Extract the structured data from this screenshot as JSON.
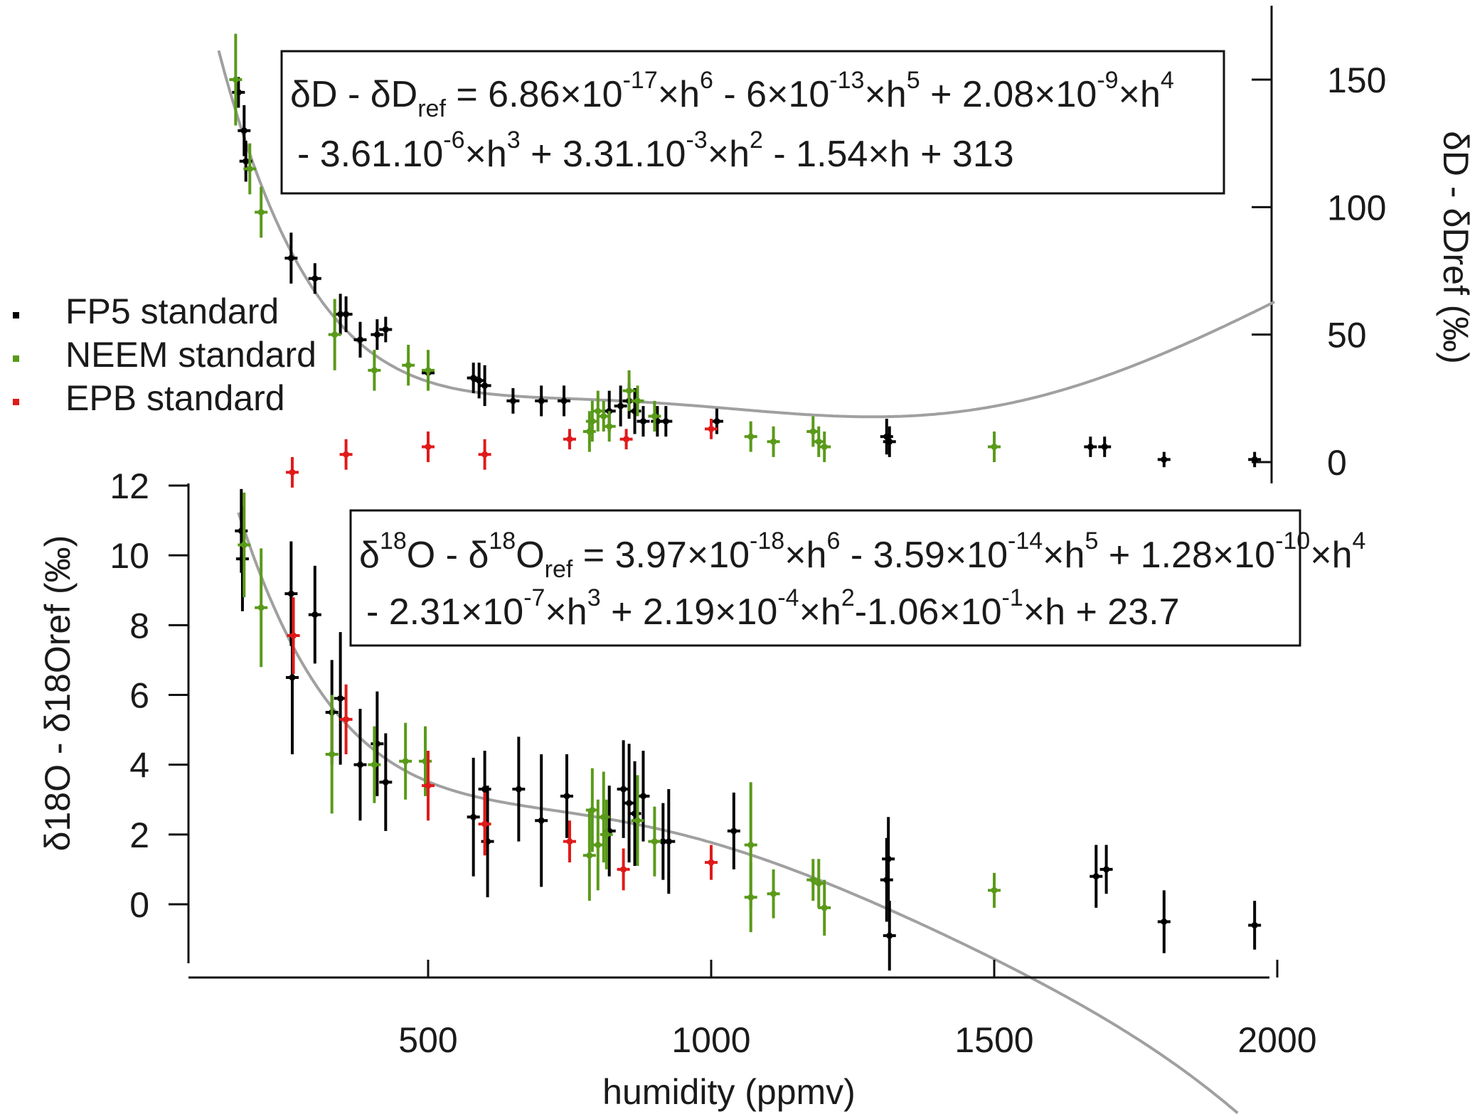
{
  "chart_data": {
    "type": "scatter",
    "x_axis": {
      "label": "humidity (ppmv)",
      "xlim": [
        70,
        2000
      ],
      "ticks": [
        "500",
        "1000",
        "1500",
        "2000"
      ]
    },
    "legend": {
      "placement": "left",
      "items": [
        {
          "label": "FP5 standard",
          "color": "#000000"
        },
        {
          "label": "NEEM standard",
          "color": "#5a9a1a"
        },
        {
          "label": "EPB standard",
          "color": "#e01a1a"
        }
      ]
    },
    "fit_color": "#a0a0a0",
    "panels": [
      {
        "id": "dD",
        "ylabel": "δD - δDref (‰)",
        "ylim": [
          0,
          180
        ],
        "yticks": [
          "0",
          "50",
          "100",
          "150"
        ],
        "equation": {
          "line1": [
            "δD - δD",
            "ref",
            " = 6.86×10",
            "-17",
            "×h",
            "6",
            " - 6×10",
            "-13",
            "×h",
            "5",
            " + 2.08×10",
            "-9",
            "×h",
            "4"
          ],
          "line2": [
            " - 3.61.10",
            "-6",
            "×h",
            "3",
            " + 3.31.10",
            "-3",
            "×h",
            "2",
            " - 1.54×h + 313"
          ]
        },
        "fit_coeffs": [
          313,
          -1.54,
          0.00331,
          -3.61e-06,
          2.08e-09,
          -6e-13,
          6.86e-17
        ],
        "series": [
          {
            "name": "FP5 standard",
            "points": [
              [
                165,
                145,
                6
              ],
              [
                175,
                130,
                10
              ],
              [
                178,
                118,
                8
              ],
              [
                258,
                80,
                10
              ],
              [
                300,
                72,
                6
              ],
              [
                345,
                58,
                8
              ],
              [
                355,
                58,
                7
              ],
              [
                380,
                48,
                7
              ],
              [
                410,
                50,
                6
              ],
              [
                425,
                52,
                5
              ],
              [
                500,
                35,
                5
              ],
              [
                580,
                33,
                6
              ],
              [
                590,
                32,
                7
              ],
              [
                600,
                30,
                8
              ],
              [
                650,
                24,
                5
              ],
              [
                700,
                24,
                6
              ],
              [
                740,
                24,
                6
              ],
              [
                820,
                20,
                8
              ],
              [
                840,
                22,
                8
              ],
              [
                855,
                24,
                7
              ],
              [
                865,
                20,
                9
              ],
              [
                880,
                16,
                6
              ],
              [
                905,
                16,
                6
              ],
              [
                920,
                16,
                6
              ],
              [
                1010,
                16,
                5
              ],
              [
                1310,
                10,
                7
              ],
              [
                1315,
                8,
                6
              ],
              [
                1670,
                6,
                4
              ],
              [
                1695,
                6,
                4
              ],
              [
                1800,
                1,
                3
              ],
              [
                1960,
                1,
                3
              ]
            ]
          },
          {
            "name": "NEEM standard",
            "points": [
              [
                160,
                150,
                18
              ],
              [
                185,
                115,
                10
              ],
              [
                205,
                98,
                10
              ],
              [
                335,
                50,
                14
              ],
              [
                405,
                36,
                8
              ],
              [
                465,
                38,
                8
              ],
              [
                500,
                36,
                8
              ],
              [
                785,
                12,
                8
              ],
              [
                790,
                16,
                8
              ],
              [
                800,
                20,
                8
              ],
              [
                810,
                18,
                6
              ],
              [
                820,
                14,
                6
              ],
              [
                855,
                28,
                8
              ],
              [
                870,
                24,
                6
              ],
              [
                900,
                18,
                6
              ],
              [
                1070,
                10,
                6
              ],
              [
                1110,
                8,
                6
              ],
              [
                1180,
                12,
                6
              ],
              [
                1190,
                8,
                6
              ],
              [
                1200,
                6,
                6
              ],
              [
                1500,
                6,
                6
              ]
            ]
          },
          {
            "name": "EPB standard",
            "points": [
              [
                260,
                -4,
                6
              ],
              [
                355,
                3,
                6
              ],
              [
                500,
                6,
                6
              ],
              [
                600,
                3,
                6
              ],
              [
                750,
                9,
                4
              ],
              [
                850,
                9,
                4
              ],
              [
                1000,
                13,
                4
              ]
            ]
          }
        ]
      },
      {
        "id": "d18O",
        "ylabel": "δ18O - δ18Oref (‰)",
        "ylim": [
          -2,
          12
        ],
        "yticks": [
          "0",
          "2",
          "4",
          "6",
          "8",
          "10",
          "12"
        ],
        "equation": {
          "line1": [
            "δ",
            "18",
            "O - δ",
            "18",
            "O",
            "ref",
            " = 3.97×10",
            "-18",
            "×h",
            "6",
            " - 3.59×10",
            "-14",
            "×h",
            "5",
            " + 1.28×10",
            "-10",
            "×h",
            "4"
          ],
          "line2": [
            " - 2.31×10",
            "-7",
            "×h",
            "3",
            " + 2.19×10",
            "-4",
            "×h",
            "2",
            "-1.06×10",
            "-1",
            "×h + 23.7"
          ]
        },
        "fit_coeffs": [
          23.7,
          -0.106,
          0.000219,
          -2.31e-07,
          1.28e-10,
          -3.59e-14,
          3.97e-18
        ],
        "series": [
          {
            "name": "FP5 standard",
            "points": [
              [
                170,
                10.7,
                1.2
              ],
              [
                172,
                9.9,
                1.5
              ],
              [
                258,
                8.9,
                1.5
              ],
              [
                260,
                6.5,
                2.2
              ],
              [
                300,
                8.3,
                1.4
              ],
              [
                330,
                5.5,
                1.5
              ],
              [
                345,
                5.9,
                1.9
              ],
              [
                380,
                4.0,
                1.6
              ],
              [
                410,
                4.6,
                1.5
              ],
              [
                425,
                3.5,
                1.4
              ],
              [
                580,
                2.5,
                1.7
              ],
              [
                600,
                3.3,
                1.1
              ],
              [
                605,
                1.8,
                1.6
              ],
              [
                660,
                3.3,
                1.5
              ],
              [
                700,
                2.4,
                1.9
              ],
              [
                745,
                3.1,
                1.2
              ],
              [
                820,
                2.1,
                1.3
              ],
              [
                845,
                3.3,
                1.4
              ],
              [
                855,
                2.9,
                1.7
              ],
              [
                865,
                2.6,
                1.5
              ],
              [
                880,
                3.1,
                1.3
              ],
              [
                915,
                1.8,
                1.1
              ],
              [
                925,
                1.8,
                1.5
              ],
              [
                1040,
                2.1,
                1.1
              ],
              [
                1310,
                0.7,
                1.2
              ],
              [
                1313,
                1.3,
                1.2
              ],
              [
                1315,
                -0.9,
                1.0
              ],
              [
                1680,
                0.8,
                0.9
              ],
              [
                1698,
                1.0,
                0.7
              ],
              [
                1800,
                -0.5,
                0.9
              ],
              [
                1960,
                -0.6,
                0.7
              ]
            ]
          },
          {
            "name": "NEEM standard",
            "points": [
              [
                175,
                10.3,
                1.5
              ],
              [
                205,
                8.5,
                1.7
              ],
              [
                330,
                4.3,
                1.7
              ],
              [
                405,
                4.0,
                1.1
              ],
              [
                460,
                4.1,
                1.1
              ],
              [
                495,
                4.1,
                1.0
              ],
              [
                785,
                1.4,
                1.3
              ],
              [
                790,
                2.7,
                1.2
              ],
              [
                800,
                1.7,
                1.3
              ],
              [
                810,
                2.5,
                1.3
              ],
              [
                815,
                2.0,
                1.0
              ],
              [
                870,
                2.4,
                1.3
              ],
              [
                900,
                1.8,
                1.0
              ],
              [
                1070,
                1.7,
                1.8
              ],
              [
                1070,
                0.2,
                1.0
              ],
              [
                1110,
                0.3,
                0.7
              ],
              [
                1180,
                0.7,
                0.6
              ],
              [
                1190,
                0.6,
                0.7
              ],
              [
                1200,
                -0.1,
                0.8
              ],
              [
                1500,
                0.4,
                0.5
              ]
            ]
          },
          {
            "name": "EPB standard",
            "points": [
              [
                262,
                7.7,
                1.1
              ],
              [
                355,
                5.3,
                1.0
              ],
              [
                500,
                3.4,
                1.0
              ],
              [
                600,
                2.3,
                0.9
              ],
              [
                750,
                1.8,
                0.6
              ],
              [
                845,
                1.0,
                0.6
              ],
              [
                1000,
                1.2,
                0.5
              ]
            ]
          }
        ]
      }
    ]
  }
}
